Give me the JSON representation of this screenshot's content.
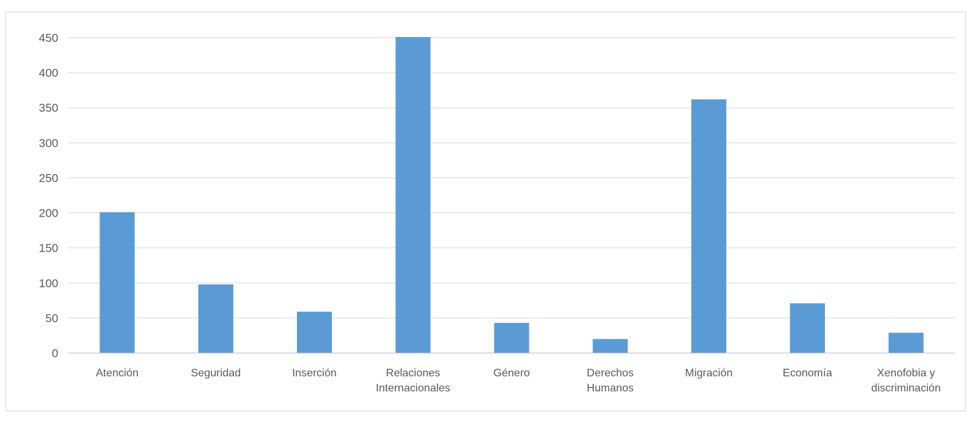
{
  "chart_data": {
    "type": "bar",
    "categories": [
      [
        "Atención"
      ],
      [
        "Seguridad"
      ],
      [
        "Inserción"
      ],
      [
        "Relaciones",
        "Internacionales"
      ],
      [
        "Género"
      ],
      [
        "Derechos",
        "Humanos"
      ],
      [
        "Migración"
      ],
      [
        "Economía"
      ],
      [
        "Xenofobia y",
        "discriminación"
      ]
    ],
    "values": [
      201,
      98,
      59,
      451,
      43,
      20,
      362,
      71,
      29
    ],
    "yticks": [
      "0",
      "50",
      "100",
      "150",
      "200",
      "250",
      "300",
      "350",
      "400",
      "450"
    ],
    "ylim": [
      0,
      450
    ],
    "grid": true,
    "title": "",
    "xlabel": "",
    "ylabel": "",
    "colors": {
      "bar": "#5b9bd5",
      "grid": "#d9d9d9",
      "axis": "#bfbfbf",
      "text": "#595959"
    }
  }
}
